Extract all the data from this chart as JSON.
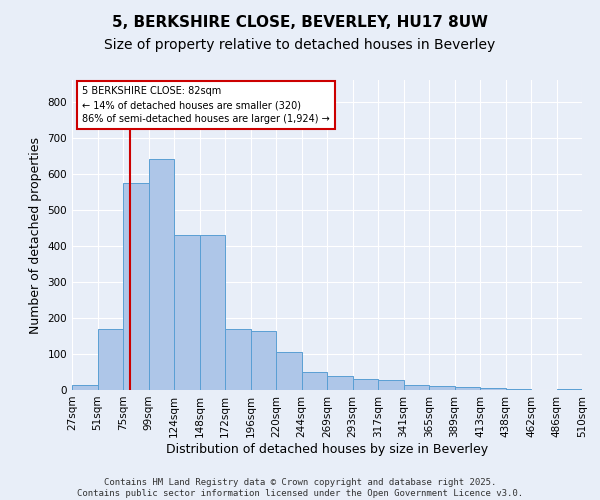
{
  "title1": "5, BERKSHIRE CLOSE, BEVERLEY, HU17 8UW",
  "title2": "Size of property relative to detached houses in Beverley",
  "xlabel": "Distribution of detached houses by size in Beverley",
  "ylabel": "Number of detached properties",
  "tick_labels": [
    "27sqm",
    "51sqm",
    "75sqm",
    "99sqm",
    "124sqm",
    "148sqm",
    "172sqm",
    "196sqm",
    "220sqm",
    "244sqm",
    "269sqm",
    "293sqm",
    "317sqm",
    "341sqm",
    "365sqm",
    "389sqm",
    "413sqm",
    "438sqm",
    "462sqm",
    "486sqm",
    "510sqm"
  ],
  "bar_values": [
    15,
    170,
    575,
    640,
    430,
    430,
    170,
    165,
    105,
    50,
    40,
    30,
    28,
    13,
    12,
    8,
    6,
    3,
    1,
    2
  ],
  "bar_color": "#aec6e8",
  "bar_edge_color": "#5a9fd4",
  "bg_color": "#e8eef8",
  "grid_color": "#ffffff",
  "vline_color": "#cc0000",
  "annotation_line1": "5 BERKSHIRE CLOSE: 82sqm",
  "annotation_line2": "← 14% of detached houses are smaller (320)",
  "annotation_line3": "86% of semi-detached houses are larger (1,924) →",
  "annotation_color": "#cc0000",
  "ylim": [
    0,
    860
  ],
  "yticks": [
    0,
    100,
    200,
    300,
    400,
    500,
    600,
    700,
    800
  ],
  "footer_line1": "Contains HM Land Registry data © Crown copyright and database right 2025.",
  "footer_line2": "Contains public sector information licensed under the Open Government Licence v3.0.",
  "title_fontsize": 11,
  "subtitle_fontsize": 10,
  "tick_fontsize": 7.5,
  "label_fontsize": 9,
  "footer_fontsize": 6.5,
  "vline_pos": 1.79
}
